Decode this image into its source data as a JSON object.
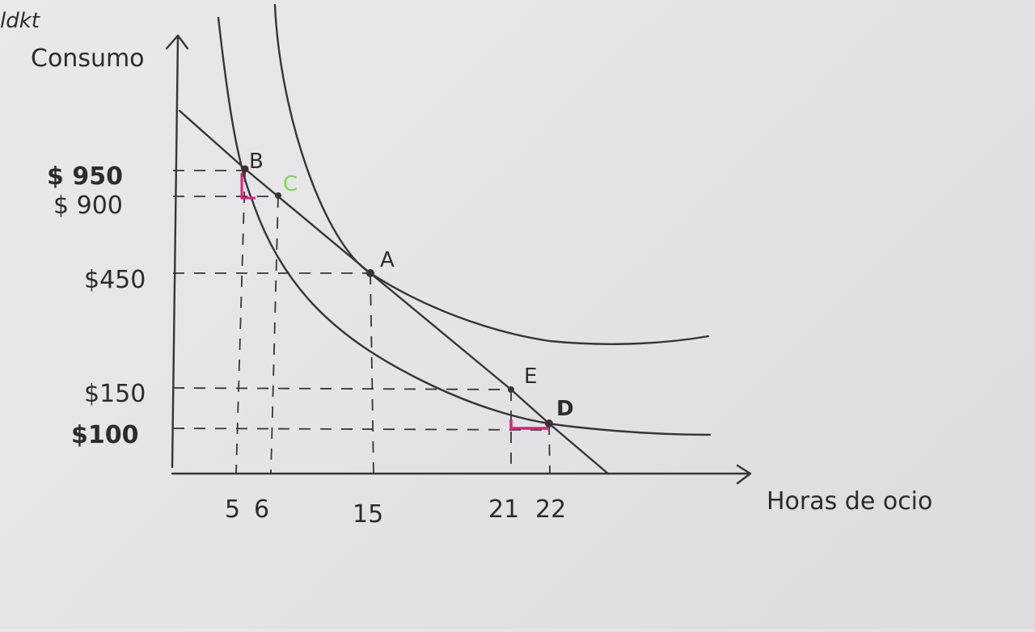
{
  "corner_text": "ldkt",
  "axes": {
    "y_label": "Consumo",
    "x_label": "Horas de ocio"
  },
  "y_ticks": [
    "$ 950",
    "$ 900",
    "$450",
    "$150",
    "$100"
  ],
  "x_ticks": [
    "5",
    "6",
    "15",
    "21",
    "22"
  ],
  "points": [
    {
      "label": "B",
      "x": 5,
      "y": 950
    },
    {
      "label": "C",
      "x": 6,
      "y": 900
    },
    {
      "label": "A",
      "x": 15,
      "y": 450
    },
    {
      "label": "E",
      "x": 21,
      "y": 150
    },
    {
      "label": "D",
      "x": 22,
      "y": 100
    }
  ],
  "colors": {
    "ink": "#3a3434",
    "highlight_green": "#7ed957",
    "highlight_pink": "#e0207a",
    "paper": "#e7e7e8"
  }
}
